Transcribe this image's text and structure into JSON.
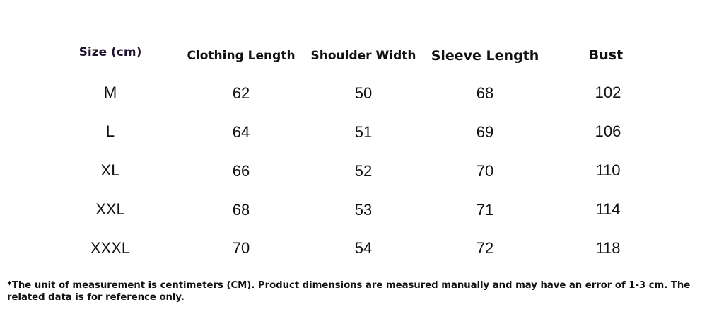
{
  "table": {
    "headers": [
      "Size (cm)",
      "Clothing Length",
      "Shoulder Width",
      "Sleeve Length",
      "Bust"
    ],
    "rows": [
      [
        "M",
        "62",
        "50",
        "68",
        "102"
      ],
      [
        "L",
        "64",
        "51",
        "69",
        "106"
      ],
      [
        "XL",
        "66",
        "52",
        "70",
        "110"
      ],
      [
        "XXL",
        "68",
        "53",
        "71",
        "114"
      ],
      [
        "XXXL",
        "70",
        "54",
        "72",
        "118"
      ]
    ]
  },
  "note": "*The unit of measurement is centimeters (CM). Product dimensions are measured manually and may have an error of 1-3 cm. The related data is for reference only."
}
